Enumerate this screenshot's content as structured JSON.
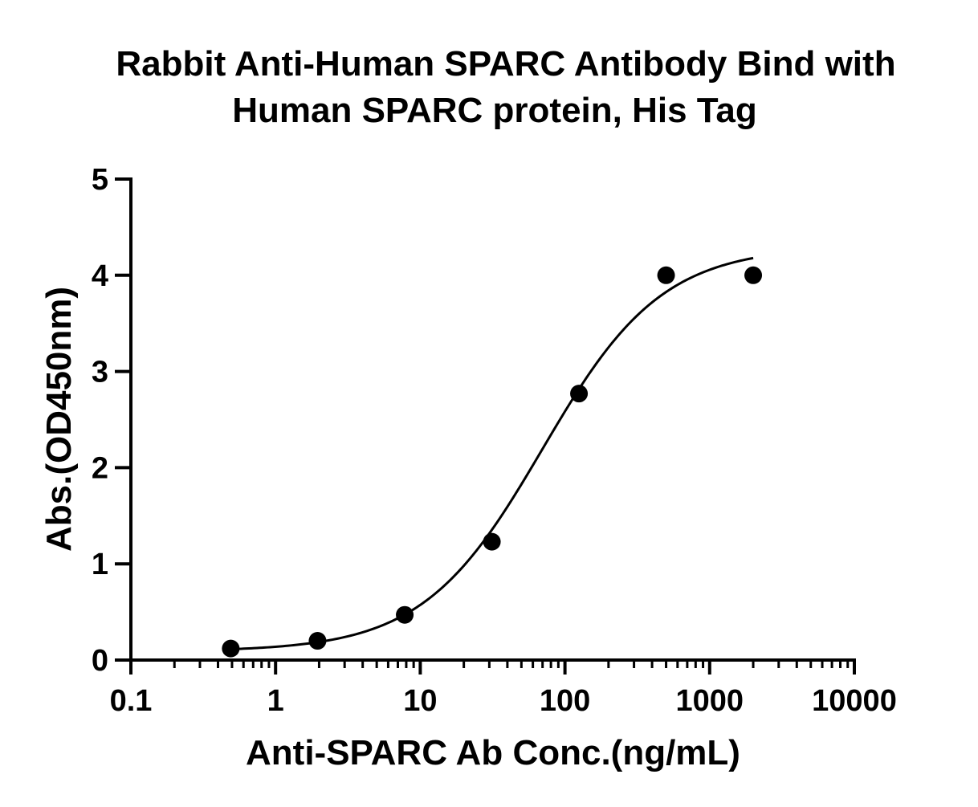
{
  "chart_data": {
    "type": "scatter",
    "title_lines": [
      "Rabbit Anti-Human SPARC Antibody Bind with",
      "Human SPARC protein,  His Tag"
    ],
    "xlabel": "Anti-SPARC Ab Conc.(ng/mL)",
    "ylabel": "Abs.(OD450nm)",
    "x_scale": "log",
    "xlim": [
      0.1,
      10000
    ],
    "ylim": [
      0,
      5
    ],
    "x_ticks": [
      0.1,
      1,
      10,
      100,
      1000,
      10000
    ],
    "x_tick_labels": [
      "0.1",
      "1",
      "10",
      "100",
      "1000",
      "10000"
    ],
    "y_ticks": [
      0,
      1,
      2,
      3,
      4,
      5
    ],
    "y_tick_labels": [
      "0",
      "1",
      "2",
      "3",
      "4",
      "5"
    ],
    "grid": false,
    "legend": "none",
    "series": [
      {
        "x": [
          0.49,
          1.95,
          7.81,
          31.25,
          125,
          500,
          2000
        ],
        "y": [
          0.12,
          0.2,
          0.47,
          1.23,
          2.77,
          4.0,
          4.0
        ]
      }
    ],
    "fit_curve": {
      "model": "4PL",
      "bottom": 0.09,
      "top": 4.3,
      "ec50": 70,
      "hill": 1.05,
      "x_range": [
        0.49,
        2000
      ]
    },
    "colors": {
      "marker": "#000000",
      "line": "#000000"
    }
  }
}
